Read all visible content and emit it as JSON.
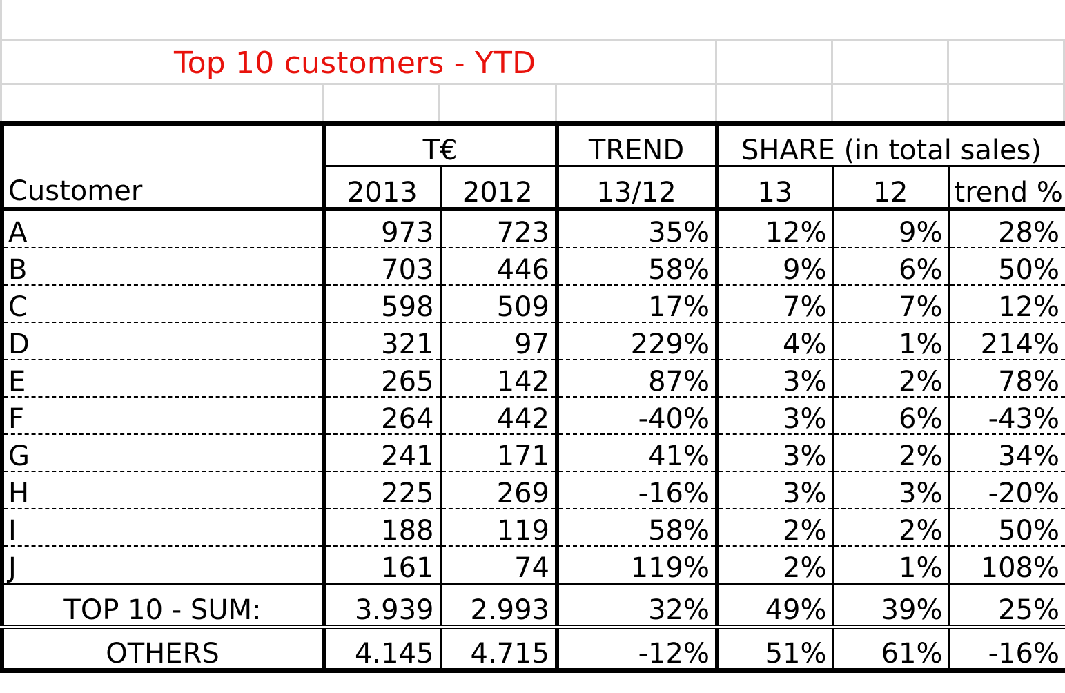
{
  "title": "Top 10 customers - YTD",
  "title_color": "#e8120c",
  "header": {
    "group_te": "T€",
    "group_trend": "TREND",
    "group_share": "SHARE (in total sales)",
    "customer": "Customer",
    "y2013": "2013",
    "y2012": "2012",
    "trend_period": "13/12",
    "share13": "13",
    "share12": "12",
    "trend_pct": "trend %"
  },
  "rows": [
    {
      "customer": "A",
      "v2013": "973",
      "v2012": "723",
      "trend": "35%",
      "share13": "12%",
      "share12": "9%",
      "share_trend": "28%"
    },
    {
      "customer": "B",
      "v2013": "703",
      "v2012": "446",
      "trend": "58%",
      "share13": "9%",
      "share12": "6%",
      "share_trend": "50%"
    },
    {
      "customer": "C",
      "v2013": "598",
      "v2012": "509",
      "trend": "17%",
      "share13": "7%",
      "share12": "7%",
      "share_trend": "12%"
    },
    {
      "customer": "D",
      "v2013": "321",
      "v2012": "97",
      "trend": "229%",
      "share13": "4%",
      "share12": "1%",
      "share_trend": "214%"
    },
    {
      "customer": "E",
      "v2013": "265",
      "v2012": "142",
      "trend": "87%",
      "share13": "3%",
      "share12": "2%",
      "share_trend": "78%"
    },
    {
      "customer": "F",
      "v2013": "264",
      "v2012": "442",
      "trend": "-40%",
      "share13": "3%",
      "share12": "6%",
      "share_trend": "-43%"
    },
    {
      "customer": "G",
      "v2013": "241",
      "v2012": "171",
      "trend": "41%",
      "share13": "3%",
      "share12": "2%",
      "share_trend": "34%"
    },
    {
      "customer": "H",
      "v2013": "225",
      "v2012": "269",
      "trend": "-16%",
      "share13": "3%",
      "share12": "3%",
      "share_trend": "-20%"
    },
    {
      "customer": "I",
      "v2013": "188",
      "v2012": "119",
      "trend": "58%",
      "share13": "2%",
      "share12": "2%",
      "share_trend": "50%"
    },
    {
      "customer": "J",
      "v2013": "161",
      "v2012": "74",
      "trend": "119%",
      "share13": "2%",
      "share12": "1%",
      "share_trend": "108%"
    }
  ],
  "top10": {
    "label": "TOP 10 - SUM:",
    "v2013": "3.939",
    "v2012": "2.993",
    "trend": "32%",
    "share13": "49%",
    "share12": "39%",
    "share_trend": "25%"
  },
  "others": {
    "label": "OTHERS",
    "v2013": "4.145",
    "v2012": "4.715",
    "trend": "-12%",
    "share13": "51%",
    "share12": "61%",
    "share_trend": "-16%"
  }
}
